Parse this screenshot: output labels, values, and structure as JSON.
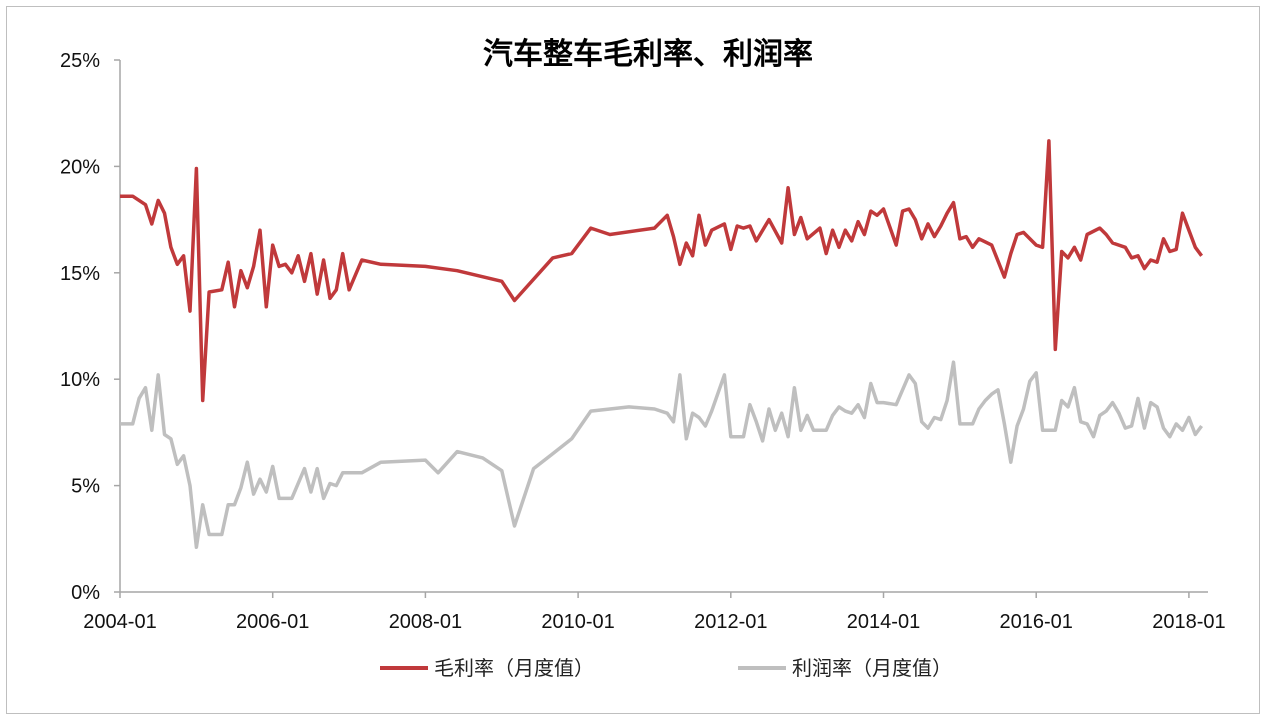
{
  "chart_data": {
    "type": "line",
    "title": "汽车整车毛利率、利润率",
    "xlabel": "",
    "ylabel": "",
    "x_ticks": [
      "2004-01",
      "2006-01",
      "2008-01",
      "2010-01",
      "2012-01",
      "2014-01",
      "2016-01",
      "2018-01"
    ],
    "y_ticks": [
      "0%",
      "5%",
      "10%",
      "15%",
      "20%",
      "25%"
    ],
    "ylim": [
      0,
      25
    ],
    "xlim": [
      "2004-01",
      "2018-04"
    ],
    "grid": false,
    "legend_position": "bottom",
    "series": [
      {
        "name": "毛利率（月度值）",
        "color": "#c0393b",
        "points": [
          [
            "2004-01",
            18.6
          ],
          [
            "2004-03",
            18.6
          ],
          [
            "2004-05",
            18.2
          ],
          [
            "2004-06",
            17.3
          ],
          [
            "2004-07",
            18.4
          ],
          [
            "2004-08",
            17.8
          ],
          [
            "2004-09",
            16.2
          ],
          [
            "2004-10",
            15.4
          ],
          [
            "2004-11",
            15.8
          ],
          [
            "2004-12",
            13.2
          ],
          [
            "2005-01",
            19.9
          ],
          [
            "2005-02",
            9.0
          ],
          [
            "2005-03",
            14.1
          ],
          [
            "2005-05",
            14.2
          ],
          [
            "2005-06",
            15.5
          ],
          [
            "2005-07",
            13.4
          ],
          [
            "2005-08",
            15.1
          ],
          [
            "2005-09",
            14.3
          ],
          [
            "2005-10",
            15.3
          ],
          [
            "2005-11",
            17.0
          ],
          [
            "2005-12",
            13.4
          ],
          [
            "2006-01",
            16.3
          ],
          [
            "2006-02",
            15.3
          ],
          [
            "2006-03",
            15.4
          ],
          [
            "2006-04",
            15.0
          ],
          [
            "2006-05",
            15.8
          ],
          [
            "2006-06",
            14.6
          ],
          [
            "2006-07",
            15.9
          ],
          [
            "2006-08",
            14.0
          ],
          [
            "2006-09",
            15.6
          ],
          [
            "2006-10",
            13.8
          ],
          [
            "2006-11",
            14.2
          ],
          [
            "2006-12",
            15.9
          ],
          [
            "2007-01",
            14.2
          ],
          [
            "2007-03",
            15.6
          ],
          [
            "2007-06",
            15.4
          ],
          [
            "2008-01",
            15.3
          ],
          [
            "2008-06",
            15.1
          ],
          [
            "2009-01",
            14.6
          ],
          [
            "2009-03",
            13.7
          ],
          [
            "2009-09",
            15.7
          ],
          [
            "2009-12",
            15.9
          ],
          [
            "2010-03",
            17.1
          ],
          [
            "2010-06",
            16.8
          ],
          [
            "2011-01",
            17.1
          ],
          [
            "2011-03",
            17.7
          ],
          [
            "2011-04",
            16.7
          ],
          [
            "2011-05",
            15.4
          ],
          [
            "2011-06",
            16.4
          ],
          [
            "2011-07",
            15.8
          ],
          [
            "2011-08",
            17.7
          ],
          [
            "2011-09",
            16.3
          ],
          [
            "2011-10",
            17.0
          ],
          [
            "2011-12",
            17.3
          ],
          [
            "2012-01",
            16.1
          ],
          [
            "2012-02",
            17.2
          ],
          [
            "2012-03",
            17.1
          ],
          [
            "2012-04",
            17.2
          ],
          [
            "2012-05",
            16.5
          ],
          [
            "2012-07",
            17.5
          ],
          [
            "2012-09",
            16.4
          ],
          [
            "2012-10",
            19.0
          ],
          [
            "2012-11",
            16.8
          ],
          [
            "2012-12",
            17.6
          ],
          [
            "2013-01",
            16.6
          ],
          [
            "2013-03",
            17.1
          ],
          [
            "2013-04",
            15.9
          ],
          [
            "2013-05",
            17.0
          ],
          [
            "2013-06",
            16.2
          ],
          [
            "2013-07",
            17.0
          ],
          [
            "2013-08",
            16.5
          ],
          [
            "2013-09",
            17.4
          ],
          [
            "2013-10",
            16.8
          ],
          [
            "2013-11",
            17.9
          ],
          [
            "2013-12",
            17.7
          ],
          [
            "2014-01",
            18.0
          ],
          [
            "2014-03",
            16.3
          ],
          [
            "2014-04",
            17.9
          ],
          [
            "2014-05",
            18.0
          ],
          [
            "2014-06",
            17.5
          ],
          [
            "2014-07",
            16.6
          ],
          [
            "2014-08",
            17.3
          ],
          [
            "2014-09",
            16.7
          ],
          [
            "2014-10",
            17.2
          ],
          [
            "2014-11",
            17.8
          ],
          [
            "2014-12",
            18.3
          ],
          [
            "2015-01",
            16.6
          ],
          [
            "2015-02",
            16.7
          ],
          [
            "2015-03",
            16.2
          ],
          [
            "2015-04",
            16.6
          ],
          [
            "2015-06",
            16.3
          ],
          [
            "2015-08",
            14.8
          ],
          [
            "2015-09",
            15.9
          ],
          [
            "2015-10",
            16.8
          ],
          [
            "2015-11",
            16.9
          ],
          [
            "2016-01",
            16.3
          ],
          [
            "2016-02",
            16.2
          ],
          [
            "2016-03",
            21.2
          ],
          [
            "2016-04",
            11.4
          ],
          [
            "2016-05",
            16.0
          ],
          [
            "2016-06",
            15.7
          ],
          [
            "2016-07",
            16.2
          ],
          [
            "2016-08",
            15.6
          ],
          [
            "2016-09",
            16.8
          ],
          [
            "2016-11",
            17.1
          ],
          [
            "2016-12",
            16.8
          ],
          [
            "2017-01",
            16.4
          ],
          [
            "2017-03",
            16.2
          ],
          [
            "2017-04",
            15.7
          ],
          [
            "2017-05",
            15.8
          ],
          [
            "2017-06",
            15.2
          ],
          [
            "2017-07",
            15.6
          ],
          [
            "2017-08",
            15.5
          ],
          [
            "2017-09",
            16.6
          ],
          [
            "2017-10",
            16.0
          ],
          [
            "2017-11",
            16.1
          ],
          [
            "2017-12",
            17.8
          ],
          [
            "2018-01",
            17.0
          ],
          [
            "2018-02",
            16.2
          ],
          [
            "2018-03",
            15.8
          ]
        ]
      },
      {
        "name": "利润率（月度值）",
        "color": "#bfbfbf",
        "points": [
          [
            "2004-01",
            7.9
          ],
          [
            "2004-03",
            7.9
          ],
          [
            "2004-04",
            9.1
          ],
          [
            "2004-05",
            9.6
          ],
          [
            "2004-06",
            7.6
          ],
          [
            "2004-07",
            10.2
          ],
          [
            "2004-08",
            7.4
          ],
          [
            "2004-09",
            7.2
          ],
          [
            "2004-10",
            6.0
          ],
          [
            "2004-11",
            6.4
          ],
          [
            "2004-12",
            5.0
          ],
          [
            "2005-01",
            2.1
          ],
          [
            "2005-02",
            4.1
          ],
          [
            "2005-03",
            2.7
          ],
          [
            "2005-05",
            2.7
          ],
          [
            "2005-06",
            4.1
          ],
          [
            "2005-07",
            4.1
          ],
          [
            "2005-08",
            4.9
          ],
          [
            "2005-09",
            6.1
          ],
          [
            "2005-10",
            4.6
          ],
          [
            "2005-11",
            5.3
          ],
          [
            "2005-12",
            4.7
          ],
          [
            "2006-01",
            5.9
          ],
          [
            "2006-02",
            4.4
          ],
          [
            "2006-04",
            4.4
          ],
          [
            "2006-06",
            5.8
          ],
          [
            "2006-07",
            4.7
          ],
          [
            "2006-08",
            5.8
          ],
          [
            "2006-09",
            4.4
          ],
          [
            "2006-10",
            5.1
          ],
          [
            "2006-11",
            5.0
          ],
          [
            "2006-12",
            5.6
          ],
          [
            "2007-03",
            5.6
          ],
          [
            "2007-06",
            6.1
          ],
          [
            "2008-01",
            6.2
          ],
          [
            "2008-03",
            5.6
          ],
          [
            "2008-06",
            6.6
          ],
          [
            "2008-10",
            6.3
          ],
          [
            "2009-01",
            5.7
          ],
          [
            "2009-03",
            3.1
          ],
          [
            "2009-06",
            5.8
          ],
          [
            "2009-09",
            6.5
          ],
          [
            "2009-12",
            7.2
          ],
          [
            "2010-03",
            8.5
          ],
          [
            "2010-06",
            8.6
          ],
          [
            "2010-09",
            8.7
          ],
          [
            "2011-01",
            8.6
          ],
          [
            "2011-03",
            8.4
          ],
          [
            "2011-04",
            8.0
          ],
          [
            "2011-05",
            10.2
          ],
          [
            "2011-06",
            7.2
          ],
          [
            "2011-07",
            8.4
          ],
          [
            "2011-08",
            8.2
          ],
          [
            "2011-09",
            7.8
          ],
          [
            "2011-10",
            8.5
          ],
          [
            "2011-12",
            10.2
          ],
          [
            "2012-01",
            7.3
          ],
          [
            "2012-03",
            7.3
          ],
          [
            "2012-04",
            8.8
          ],
          [
            "2012-05",
            8.0
          ],
          [
            "2012-06",
            7.1
          ],
          [
            "2012-07",
            8.6
          ],
          [
            "2012-08",
            7.6
          ],
          [
            "2012-09",
            8.4
          ],
          [
            "2012-10",
            7.3
          ],
          [
            "2012-11",
            9.6
          ],
          [
            "2012-12",
            7.6
          ],
          [
            "2013-01",
            8.3
          ],
          [
            "2013-02",
            7.6
          ],
          [
            "2013-04",
            7.6
          ],
          [
            "2013-05",
            8.3
          ],
          [
            "2013-06",
            8.7
          ],
          [
            "2013-07",
            8.5
          ],
          [
            "2013-08",
            8.4
          ],
          [
            "2013-09",
            8.8
          ],
          [
            "2013-10",
            8.2
          ],
          [
            "2013-11",
            9.8
          ],
          [
            "2013-12",
            8.9
          ],
          [
            "2014-01",
            8.9
          ],
          [
            "2014-03",
            8.8
          ],
          [
            "2014-05",
            10.2
          ],
          [
            "2014-06",
            9.8
          ],
          [
            "2014-07",
            8.0
          ],
          [
            "2014-08",
            7.7
          ],
          [
            "2014-09",
            8.2
          ],
          [
            "2014-10",
            8.1
          ],
          [
            "2014-11",
            9.0
          ],
          [
            "2014-12",
            10.8
          ],
          [
            "2015-01",
            7.9
          ],
          [
            "2015-03",
            7.9
          ],
          [
            "2015-04",
            8.6
          ],
          [
            "2015-05",
            9.0
          ],
          [
            "2015-06",
            9.3
          ],
          [
            "2015-07",
            9.5
          ],
          [
            "2015-08",
            7.9
          ],
          [
            "2015-09",
            6.1
          ],
          [
            "2015-10",
            7.8
          ],
          [
            "2015-11",
            8.6
          ],
          [
            "2015-12",
            9.9
          ],
          [
            "2016-01",
            10.3
          ],
          [
            "2016-02",
            7.6
          ],
          [
            "2016-04",
            7.6
          ],
          [
            "2016-05",
            9.0
          ],
          [
            "2016-06",
            8.7
          ],
          [
            "2016-07",
            9.6
          ],
          [
            "2016-08",
            8.0
          ],
          [
            "2016-09",
            7.9
          ],
          [
            "2016-10",
            7.3
          ],
          [
            "2016-11",
            8.3
          ],
          [
            "2016-12",
            8.5
          ],
          [
            "2017-01",
            8.9
          ],
          [
            "2017-02",
            8.4
          ],
          [
            "2017-03",
            7.7
          ],
          [
            "2017-04",
            7.8
          ],
          [
            "2017-05",
            9.1
          ],
          [
            "2017-06",
            7.7
          ],
          [
            "2017-07",
            8.9
          ],
          [
            "2017-08",
            8.7
          ],
          [
            "2017-09",
            7.7
          ],
          [
            "2017-10",
            7.3
          ],
          [
            "2017-11",
            7.9
          ],
          [
            "2017-12",
            7.6
          ],
          [
            "2018-01",
            8.2
          ],
          [
            "2018-02",
            7.4
          ],
          [
            "2018-03",
            7.8
          ]
        ]
      }
    ]
  }
}
